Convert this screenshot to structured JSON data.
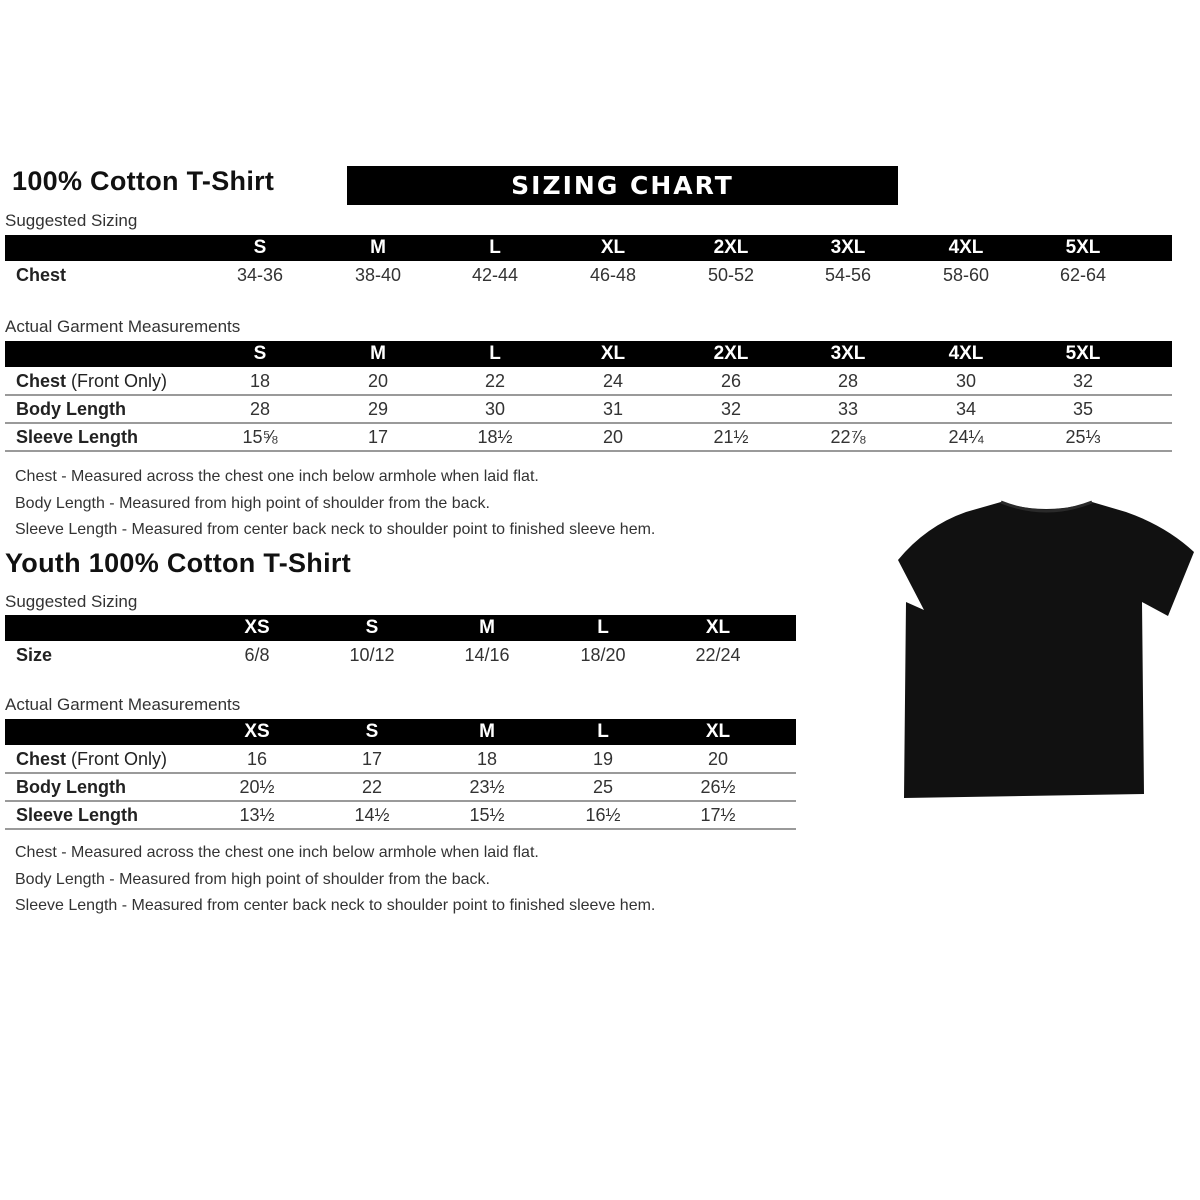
{
  "adult": {
    "title": "100% Cotton T-Shirt",
    "banner": "SIZING CHART",
    "suggested": {
      "label": "Suggested Sizing",
      "sizes": [
        "S",
        "M",
        "L",
        "XL",
        "2XL",
        "3XL",
        "4XL",
        "5XL"
      ],
      "rows": [
        {
          "label": "Chest",
          "sub": "",
          "values": [
            "34-36",
            "38-40",
            "42-44",
            "46-48",
            "50-52",
            "54-56",
            "58-60",
            "62-64"
          ]
        }
      ]
    },
    "actual": {
      "label": "Actual Garment Measurements",
      "sizes": [
        "S",
        "M",
        "L",
        "XL",
        "2XL",
        "3XL",
        "4XL",
        "5XL"
      ],
      "rows": [
        {
          "label": "Chest",
          "sub": " (Front Only)",
          "values": [
            "18",
            "20",
            "22",
            "24",
            "26",
            "28",
            "30",
            "32"
          ]
        },
        {
          "label": "Body Length",
          "sub": "",
          "values": [
            "28",
            "29",
            "30",
            "31",
            "32",
            "33",
            "34",
            "35"
          ]
        },
        {
          "label": "Sleeve Length",
          "sub": "",
          "values": [
            "15⅝",
            "17",
            "18½",
            "20",
            "21½",
            "22⅞",
            "24¼",
            "25⅓"
          ]
        }
      ]
    },
    "notes": [
      "Chest - Measured across the chest one inch below armhole when laid flat.",
      "Body Length - Measured from high point of shoulder from the back.",
      "Sleeve Length - Measured from center back neck to shoulder point to finished sleeve hem."
    ]
  },
  "youth": {
    "title": "Youth 100% Cotton T-Shirt",
    "suggested": {
      "label": "Suggested Sizing",
      "sizes": [
        "XS",
        "S",
        "M",
        "L",
        "XL"
      ],
      "rows": [
        {
          "label": "Size",
          "sub": "",
          "values": [
            "6/8",
            "10/12",
            "14/16",
            "18/20",
            "22/24"
          ]
        }
      ]
    },
    "actual": {
      "label": "Actual Garment Measurements",
      "sizes": [
        "XS",
        "S",
        "M",
        "L",
        "XL"
      ],
      "rows": [
        {
          "label": "Chest",
          "sub": " (Front Only)",
          "values": [
            "16",
            "17",
            "18",
            "19",
            "20"
          ]
        },
        {
          "label": "Body Length",
          "sub": "",
          "values": [
            "20½",
            "22",
            "23½",
            "25",
            "26½"
          ]
        },
        {
          "label": "Sleeve Length",
          "sub": "",
          "values": [
            "13½",
            "14½",
            "15½",
            "16½",
            "17½"
          ]
        }
      ]
    },
    "notes": [
      "Chest - Measured across the chest one inch below armhole when laid flat.",
      "Body Length - Measured from high point of shoulder from the back.",
      "Sleeve Length - Measured from center back neck to shoulder point to finished sleeve hem."
    ]
  },
  "image": {
    "icon": "tshirt-icon",
    "color": "#111111"
  }
}
